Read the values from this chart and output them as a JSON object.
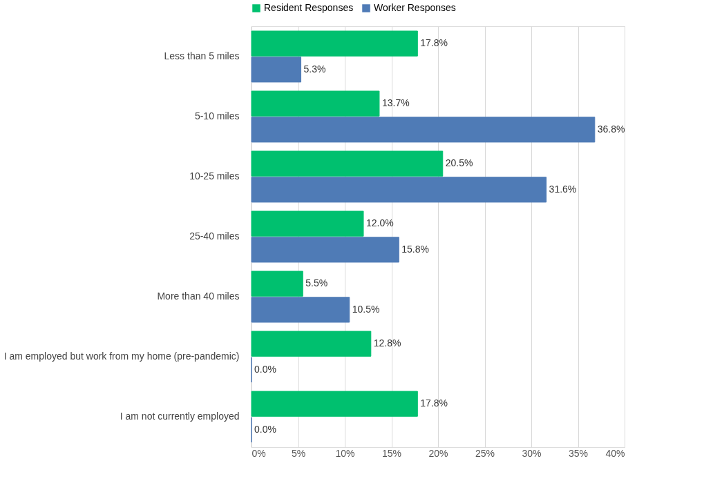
{
  "chart_data": {
    "type": "bar",
    "orientation": "horizontal",
    "categories": [
      "Less than 5 miles",
      "5-10 miles",
      "10-25 miles",
      "25-40 miles",
      "More than 40 miles",
      "I am employed but work from my home (pre-pandemic)",
      "I am not currently employed"
    ],
    "series": [
      {
        "name": "Resident Responses",
        "color": "#00c06f",
        "values": [
          17.8,
          13.7,
          20.5,
          12.0,
          5.5,
          12.8,
          17.8
        ],
        "value_labels": [
          "17.8%",
          "13.7%",
          "20.5%",
          "12.0%",
          "5.5%",
          "12.8%",
          "17.8%"
        ]
      },
      {
        "name": "Worker Responses",
        "color": "#4f7bb6",
        "values": [
          5.3,
          36.8,
          31.6,
          15.8,
          10.5,
          0.0,
          0.0
        ],
        "value_labels": [
          "5.3%",
          "36.8%",
          "31.6%",
          "15.8%",
          "10.5%",
          "0.0%",
          "0.0%"
        ]
      }
    ],
    "xlim": [
      0,
      40
    ],
    "xticks": [
      {
        "value": 0,
        "label": "0%"
      },
      {
        "value": 5,
        "label": "5%"
      },
      {
        "value": 10,
        "label": "10%"
      },
      {
        "value": 15,
        "label": "15%"
      },
      {
        "value": 20,
        "label": "20%"
      },
      {
        "value": 25,
        "label": "25%"
      },
      {
        "value": 30,
        "label": "30%"
      },
      {
        "value": 35,
        "label": "35%"
      },
      {
        "value": 40,
        "label": "40%"
      }
    ],
    "grid": "x",
    "legend": "top"
  }
}
